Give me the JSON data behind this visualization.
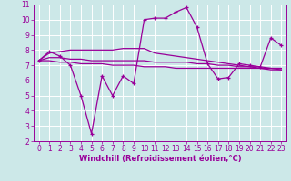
{
  "xlabel": "Windchill (Refroidissement éolien,°C)",
  "background_color": "#cce8e8",
  "grid_color": "#ffffff",
  "line_color": "#990099",
  "xlim": [
    -0.5,
    23.5
  ],
  "ylim": [
    2,
    11
  ],
  "xticks": [
    0,
    1,
    2,
    3,
    4,
    5,
    6,
    7,
    8,
    9,
    10,
    11,
    12,
    13,
    14,
    15,
    16,
    17,
    18,
    19,
    20,
    21,
    22,
    23
  ],
  "yticks": [
    2,
    3,
    4,
    5,
    6,
    7,
    8,
    9,
    10,
    11
  ],
  "main_line": [
    7.3,
    7.9,
    7.6,
    7.0,
    5.0,
    2.5,
    6.3,
    5.0,
    6.3,
    5.8,
    10.0,
    10.1,
    10.1,
    10.5,
    10.8,
    9.5,
    7.1,
    6.1,
    6.2,
    7.1,
    7.0,
    6.9,
    8.8,
    8.3
  ],
  "trend_line1": [
    7.3,
    7.8,
    7.9,
    8.0,
    8.0,
    8.0,
    8.0,
    8.0,
    8.1,
    8.1,
    8.1,
    7.8,
    7.7,
    7.6,
    7.5,
    7.4,
    7.3,
    7.2,
    7.1,
    7.0,
    6.9,
    6.9,
    6.8,
    6.8
  ],
  "trend_line2": [
    7.3,
    7.5,
    7.5,
    7.4,
    7.4,
    7.3,
    7.3,
    7.3,
    7.3,
    7.3,
    7.3,
    7.2,
    7.2,
    7.2,
    7.2,
    7.1,
    7.1,
    7.0,
    7.0,
    6.9,
    6.9,
    6.8,
    6.8,
    6.7
  ],
  "trend_line3": [
    7.3,
    7.3,
    7.2,
    7.2,
    7.1,
    7.1,
    7.1,
    7.0,
    7.0,
    7.0,
    6.9,
    6.9,
    6.9,
    6.8,
    6.8,
    6.8,
    6.8,
    6.8,
    6.8,
    6.8,
    6.8,
    6.8,
    6.7,
    6.7
  ],
  "tick_fontsize": 5.5,
  "label_fontsize": 6.0
}
